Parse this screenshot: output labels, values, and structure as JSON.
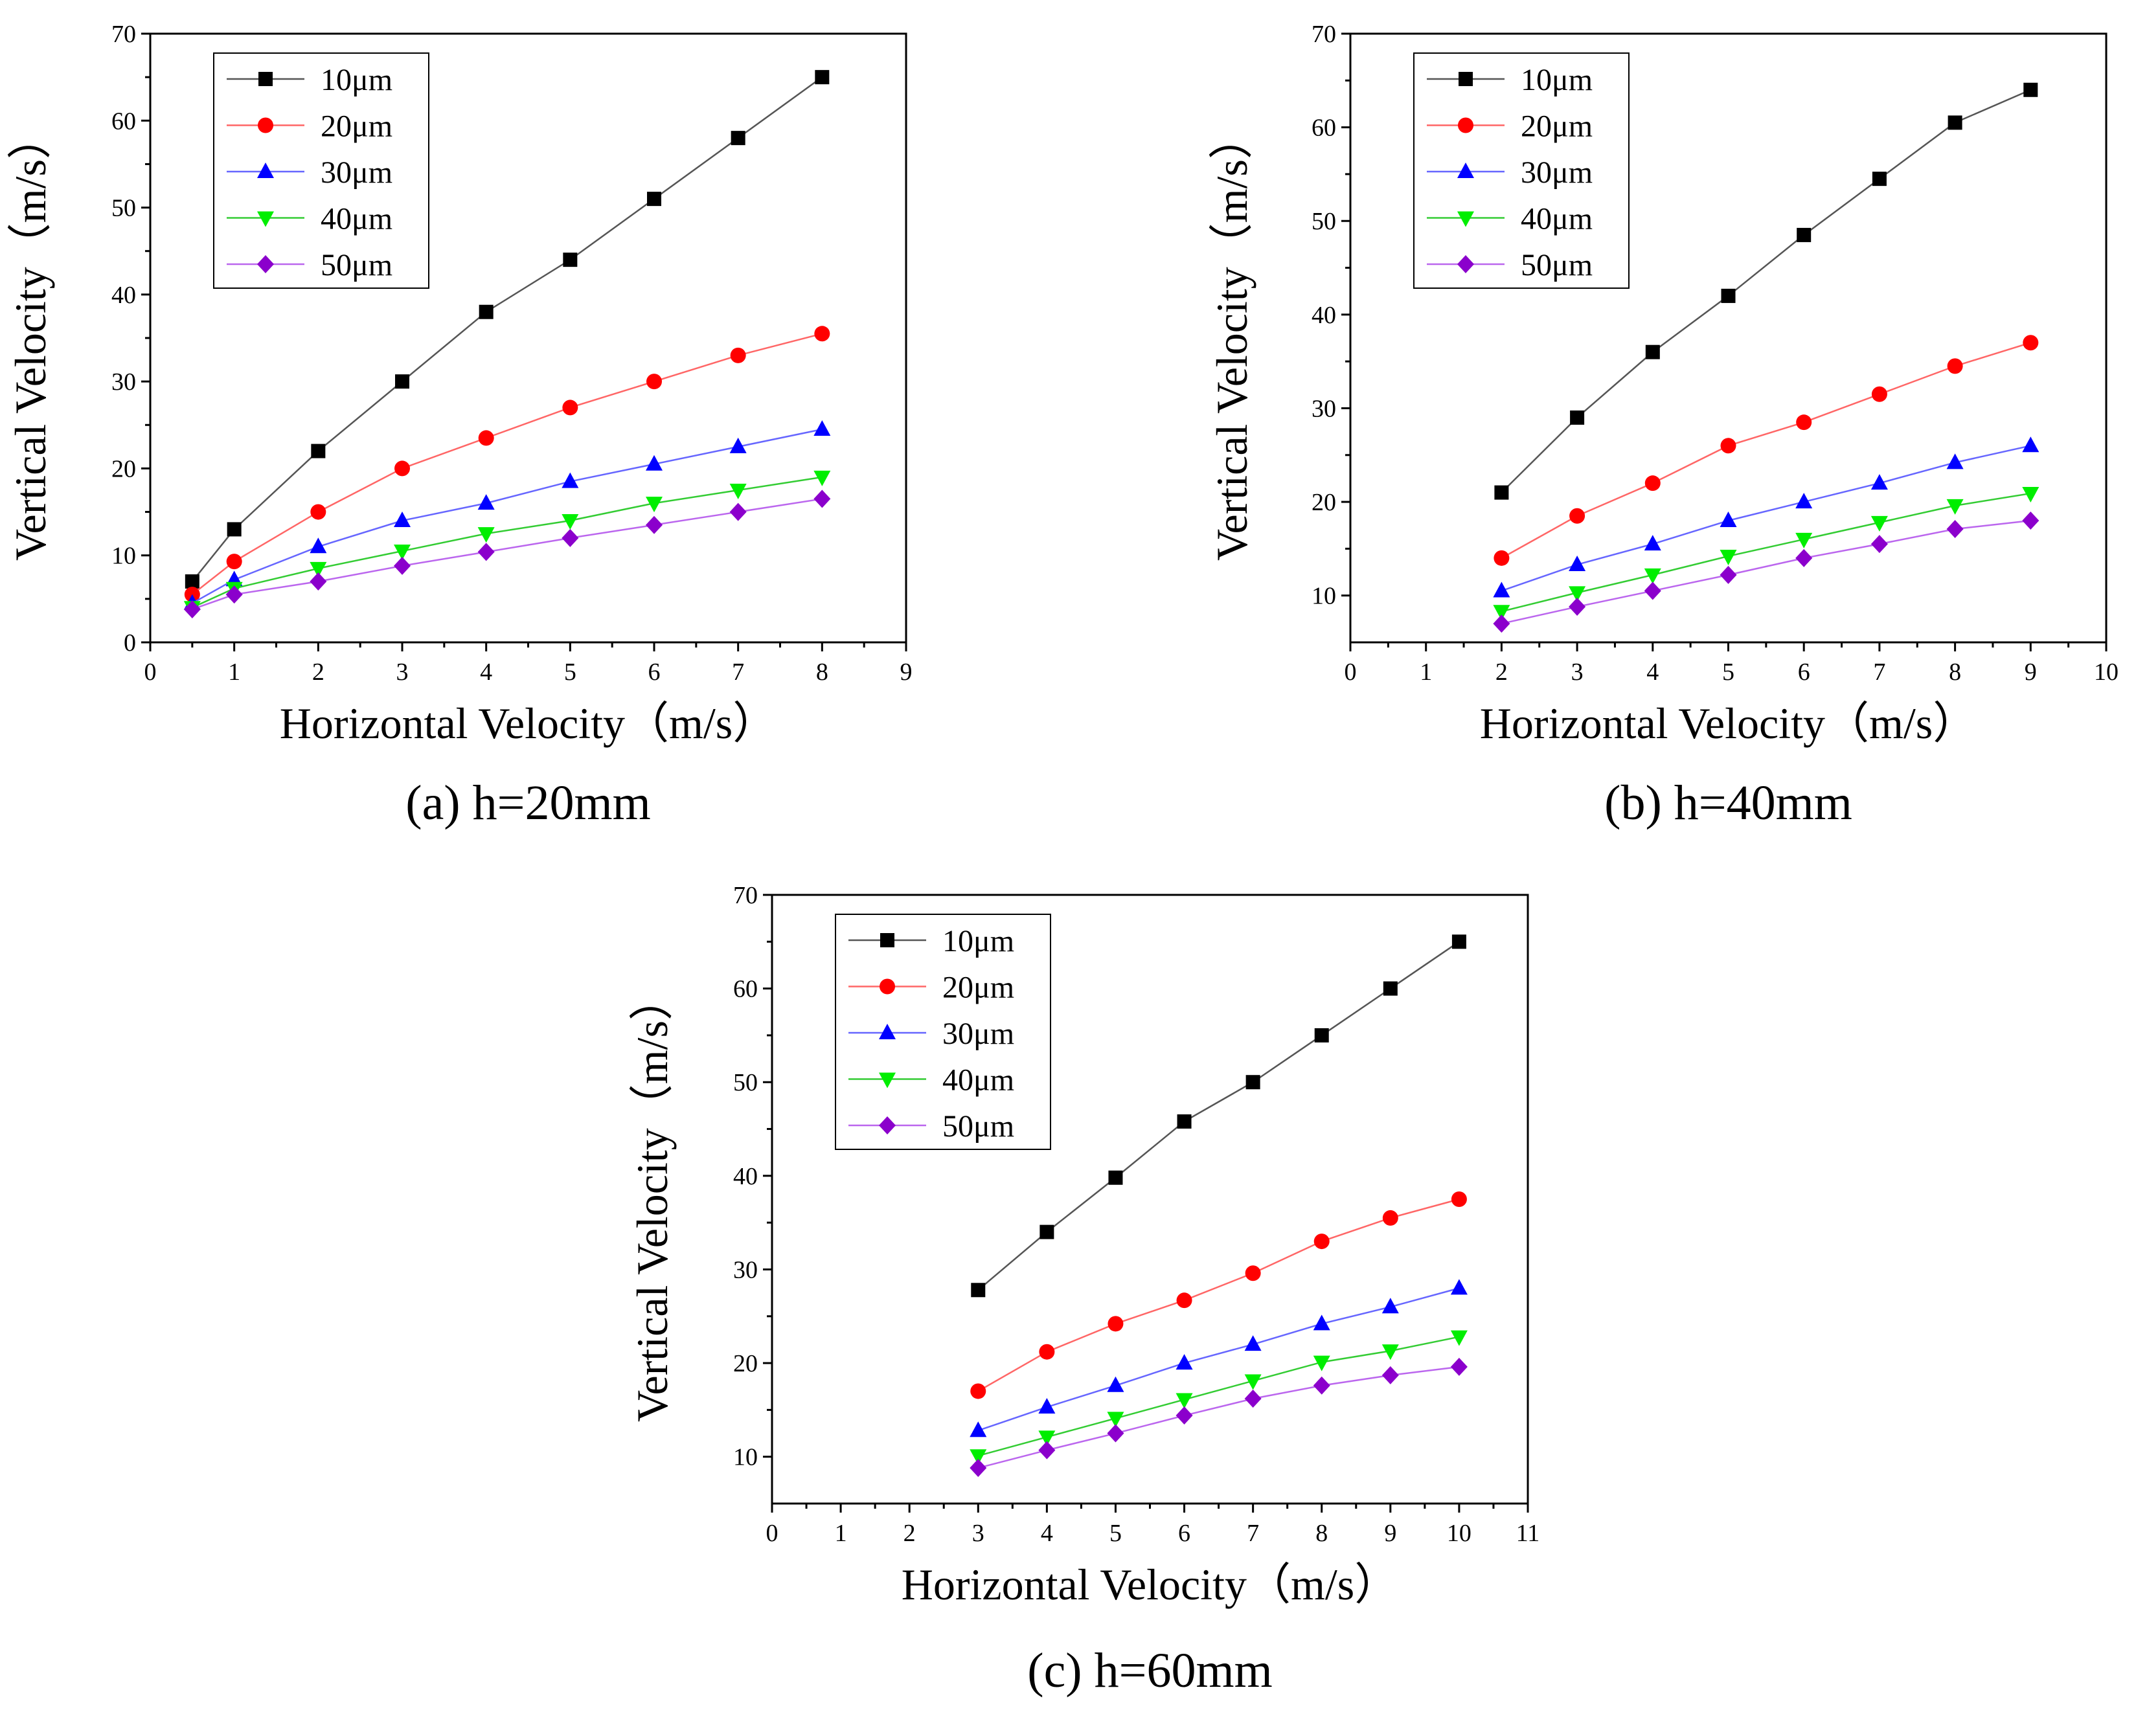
{
  "chart_data": [
    {
      "type": "line",
      "caption": "(a) h=20mm",
      "xlabel": "Horizontal Velocity（m/s）",
      "ylabel": "Vertical Velocity（m/s）",
      "xlim": [
        0,
        9
      ],
      "ylim": [
        0,
        70
      ],
      "xticks": [
        0,
        1,
        2,
        3,
        4,
        5,
        6,
        7,
        8,
        9
      ],
      "yticks": [
        0,
        10,
        20,
        30,
        40,
        50,
        60,
        70
      ],
      "legend_position": "top-left",
      "grid": false,
      "x": [
        0.5,
        1,
        2,
        3,
        4,
        5,
        6,
        7,
        8
      ],
      "series": [
        {
          "name": "10μm",
          "color": "#000000",
          "line_color": "#555555",
          "marker": "square",
          "values": [
            7,
            13,
            22,
            30,
            38,
            44,
            51,
            58,
            65
          ]
        },
        {
          "name": "20μm",
          "color": "#ff0000",
          "line_color": "#ff6666",
          "marker": "circle",
          "values": [
            5.5,
            9.3,
            15,
            20,
            23.5,
            27,
            30,
            33,
            35.5
          ]
        },
        {
          "name": "30μm",
          "color": "#0000ff",
          "line_color": "#6666ff",
          "marker": "triangle-up",
          "values": [
            4.5,
            7.2,
            11,
            14,
            16,
            18.5,
            20.5,
            22.5,
            24.5
          ]
        },
        {
          "name": "40μm",
          "color": "#00ee00",
          "line_color": "#33cc33",
          "marker": "triangle-down",
          "values": [
            4,
            6.2,
            8.5,
            10.5,
            12.5,
            14,
            16,
            17.5,
            19
          ]
        },
        {
          "name": "50μm",
          "color": "#8b00cc",
          "line_color": "#bb66ee",
          "marker": "diamond",
          "values": [
            3.8,
            5.5,
            7,
            8.8,
            10.4,
            12,
            13.5,
            15,
            16.5
          ]
        }
      ]
    },
    {
      "type": "line",
      "caption": "(b) h=40mm",
      "xlabel": "Horizontal Velocity（m/s）",
      "ylabel": "Vertical Velocity（m/s）",
      "xlim": [
        0,
        10
      ],
      "ylim": [
        5,
        70
      ],
      "xticks": [
        0,
        1,
        2,
        3,
        4,
        5,
        6,
        7,
        8,
        9,
        10
      ],
      "yticks": [
        10,
        20,
        30,
        40,
        50,
        60,
        70
      ],
      "legend_position": "top-left",
      "grid": false,
      "x": [
        2,
        3,
        4,
        5,
        6,
        7,
        8,
        9
      ],
      "series": [
        {
          "name": "10μm",
          "color": "#000000",
          "line_color": "#555555",
          "marker": "square",
          "values": [
            21,
            29,
            36,
            42,
            48.5,
            54.5,
            60.5,
            64
          ]
        },
        {
          "name": "20μm",
          "color": "#ff0000",
          "line_color": "#ff6666",
          "marker": "circle",
          "values": [
            14,
            18.5,
            22,
            26,
            28.5,
            31.5,
            34.5,
            37
          ]
        },
        {
          "name": "30μm",
          "color": "#0000ff",
          "line_color": "#6666ff",
          "marker": "triangle-up",
          "values": [
            10.5,
            13.3,
            15.5,
            18,
            20,
            22,
            24.2,
            26
          ]
        },
        {
          "name": "40μm",
          "color": "#00ee00",
          "line_color": "#33cc33",
          "marker": "triangle-down",
          "values": [
            8.3,
            10.3,
            12.2,
            14.2,
            16,
            17.8,
            19.6,
            20.9
          ]
        },
        {
          "name": "50μm",
          "color": "#8b00cc",
          "line_color": "#bb66ee",
          "marker": "diamond",
          "values": [
            7,
            8.8,
            10.5,
            12.2,
            14,
            15.5,
            17.1,
            18
          ]
        }
      ]
    },
    {
      "type": "line",
      "caption": "(c) h=60mm",
      "xlabel": "Horizontal Velocity（m/s）",
      "ylabel": "Vertical Velocity（m/s）",
      "xlim": [
        0,
        11
      ],
      "ylim": [
        5,
        70
      ],
      "xticks": [
        0,
        1,
        2,
        3,
        4,
        5,
        6,
        7,
        8,
        9,
        10,
        11
      ],
      "yticks": [
        10,
        20,
        30,
        40,
        50,
        60,
        70
      ],
      "legend_position": "top-left",
      "grid": false,
      "x": [
        3,
        4,
        5,
        6,
        7,
        8,
        9,
        10
      ],
      "series": [
        {
          "name": "10μm",
          "color": "#000000",
          "line_color": "#555555",
          "marker": "square",
          "values": [
            27.8,
            34,
            39.8,
            45.8,
            50,
            55,
            60,
            65
          ]
        },
        {
          "name": "20μm",
          "color": "#ff0000",
          "line_color": "#ff6666",
          "marker": "circle",
          "values": [
            17,
            21.2,
            24.2,
            26.7,
            29.6,
            33,
            35.5,
            37.5
          ]
        },
        {
          "name": "30μm",
          "color": "#0000ff",
          "line_color": "#6666ff",
          "marker": "triangle-up",
          "values": [
            12.8,
            15.3,
            17.6,
            20,
            22,
            24.2,
            26,
            28
          ]
        },
        {
          "name": "40μm",
          "color": "#00ee00",
          "line_color": "#33cc33",
          "marker": "triangle-down",
          "values": [
            10.1,
            12.1,
            14.1,
            16.1,
            18.1,
            20.1,
            21.3,
            22.8
          ]
        },
        {
          "name": "50μm",
          "color": "#8b00cc",
          "line_color": "#bb66ee",
          "marker": "diamond",
          "values": [
            8.8,
            10.7,
            12.5,
            14.4,
            16.2,
            17.6,
            18.7,
            19.6
          ]
        }
      ]
    }
  ]
}
